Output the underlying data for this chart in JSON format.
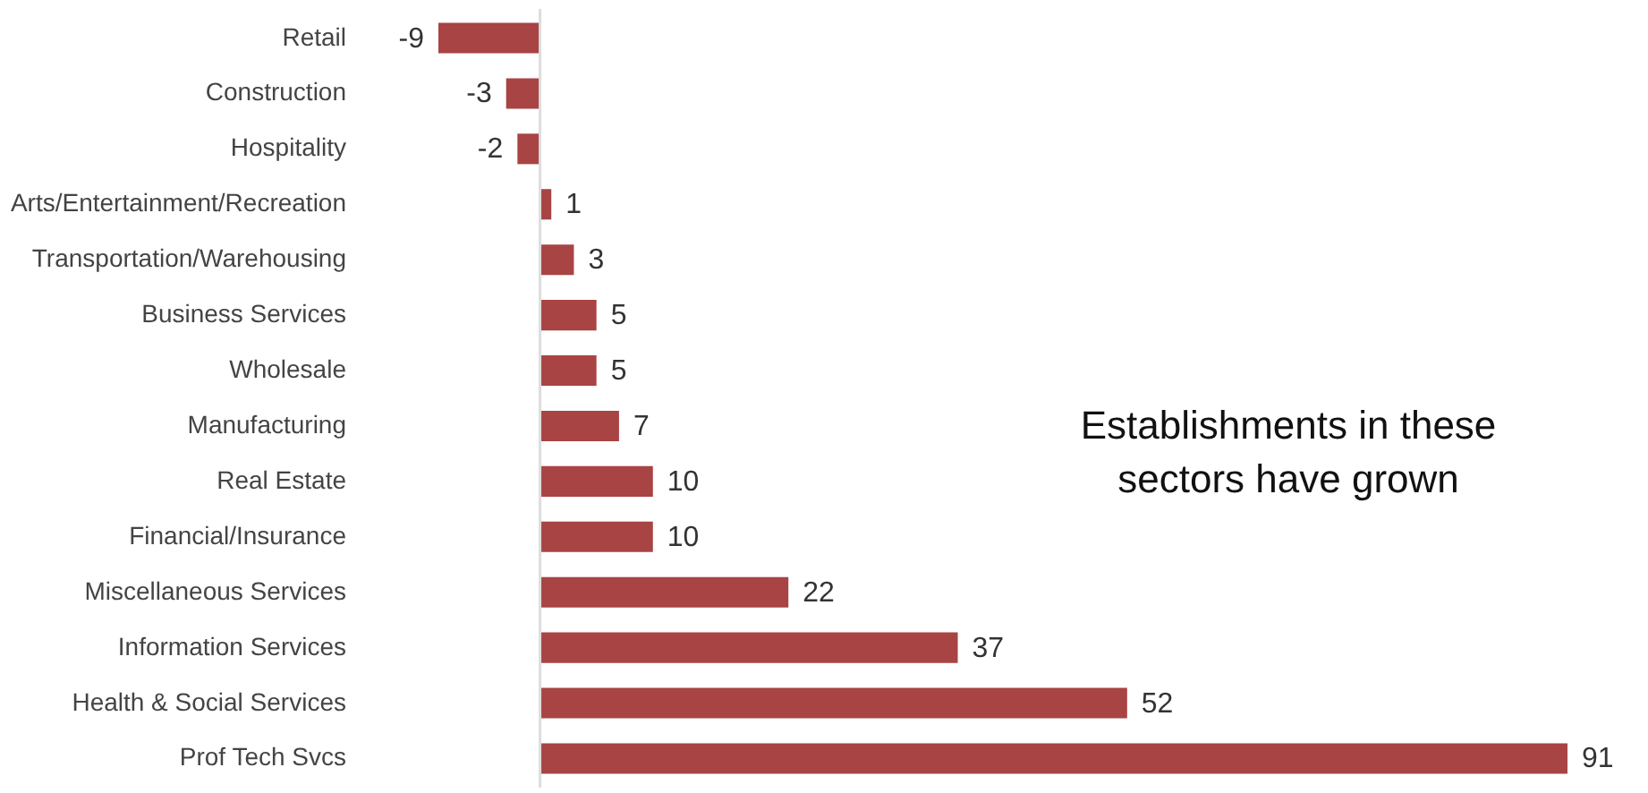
{
  "chart_data": {
    "type": "bar",
    "orientation": "horizontal",
    "categories": [
      "Retail",
      "Construction",
      "Hospitality",
      "Arts/Entertainment/Recreation",
      "Transportation/Warehousing",
      "Business Services",
      "Wholesale",
      "Manufacturing",
      "Real Estate",
      "Financial/Insurance",
      "Miscellaneous Services",
      "Information Services",
      "Health & Social Services",
      "Prof Tech Svcs"
    ],
    "values": [
      -9,
      -3,
      -2,
      1,
      3,
      5,
      5,
      7,
      10,
      10,
      22,
      37,
      52,
      91
    ],
    "color": "#a84444",
    "data_labels": true,
    "tick_labels": "y",
    "grid": false,
    "annotations": [
      "Establishments in these\nsectors have grown"
    ]
  }
}
